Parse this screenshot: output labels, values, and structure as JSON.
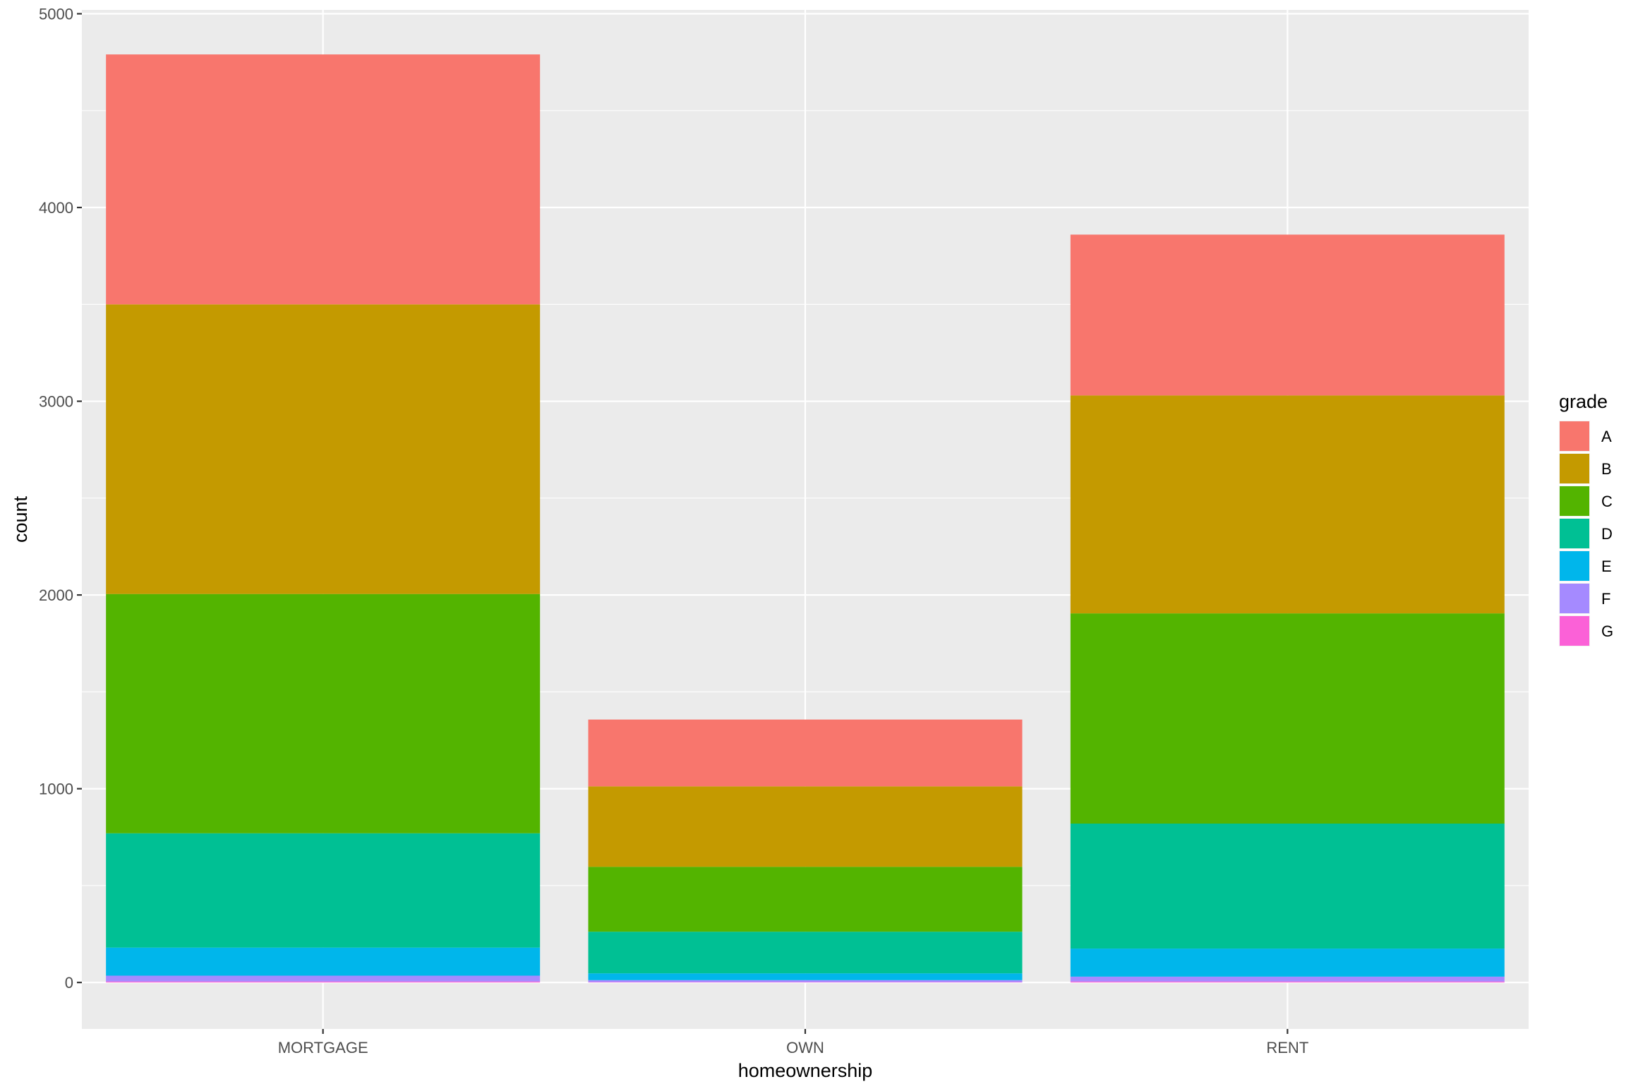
{
  "chart_data": {
    "type": "bar",
    "stacked": true,
    "xlabel": "homeownership",
    "ylabel": "count",
    "categories": [
      "MORTGAGE",
      "OWN",
      "RENT"
    ],
    "ylim": [
      -240,
      5020
    ],
    "yticks": [
      0,
      1000,
      2000,
      3000,
      4000,
      5000
    ],
    "grid": true,
    "legend_title": "grade",
    "legend_position": "right",
    "series": [
      {
        "name": "A",
        "color": "#F8766D",
        "values": [
          1290,
          345,
          830
        ]
      },
      {
        "name": "B",
        "color": "#C49A00",
        "values": [
          1495,
          415,
          1125
        ]
      },
      {
        "name": "C",
        "color": "#53B400",
        "values": [
          1235,
          335,
          1085
        ]
      },
      {
        "name": "D",
        "color": "#00C094",
        "values": [
          590,
          215,
          645
        ]
      },
      {
        "name": "E",
        "color": "#00B6EB",
        "values": [
          145,
          35,
          145
        ]
      },
      {
        "name": "F",
        "color": "#A58AFF",
        "values": [
          30,
          10,
          25
        ]
      },
      {
        "name": "G",
        "color": "#FB61D7",
        "values": [
          5,
          2,
          5
        ]
      }
    ]
  }
}
